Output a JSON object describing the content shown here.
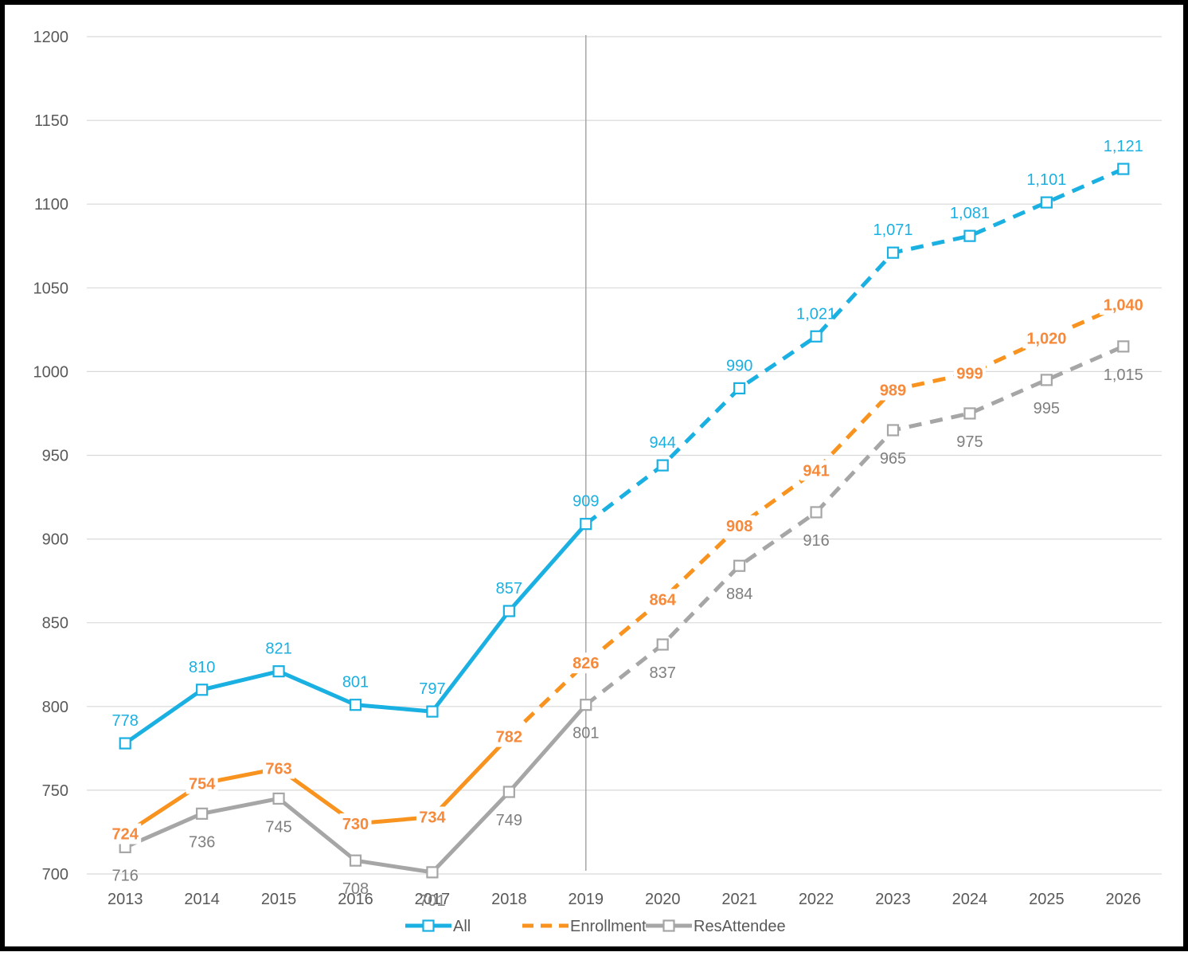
{
  "chart_data": {
    "type": "line",
    "title": "",
    "xlabel": "",
    "ylabel": "",
    "x": [
      "2013",
      "2014",
      "2015",
      "2016",
      "2017",
      "2018",
      "2019",
      "2020",
      "2021",
      "2022",
      "2023",
      "2024",
      "2025",
      "2026"
    ],
    "ylim": [
      700,
      1200
    ],
    "yticks": [
      "700",
      "750",
      "800",
      "850",
      "900",
      "950",
      "1000",
      "1050",
      "1100",
      "1150",
      "1200"
    ],
    "grid": true,
    "legend_position": "bottom",
    "forecast_from": "2019",
    "series": [
      {
        "name": "All",
        "color": "#1AB0E2",
        "marker": "hollow-square",
        "values": [
          778,
          810,
          821,
          801,
          797,
          857,
          909,
          944,
          990,
          1021,
          1071,
          1081,
          1101,
          1121
        ],
        "labels": [
          "778",
          "810",
          "821",
          "801",
          "797",
          "857",
          "909",
          "944",
          "990",
          "1,021",
          "1,071",
          "1,081",
          "1,101",
          "1,121"
        ]
      },
      {
        "name": "Enrollment",
        "color": "#F7931E",
        "label_color": "#F58A3C",
        "marker": "none",
        "values": [
          724,
          754,
          763,
          730,
          734,
          782,
          826,
          864,
          908,
          941,
          989,
          999,
          1020,
          1040
        ],
        "labels": [
          "724",
          "754",
          "763",
          "730",
          "734",
          "782",
          "826",
          "864",
          "908",
          "941",
          "989",
          "999",
          "1,020",
          "1,040"
        ]
      },
      {
        "name": "ResAttendee",
        "color": "#A6A6A6",
        "label_color": "#7F7F7F",
        "marker": "hollow-square",
        "values": [
          716,
          736,
          745,
          708,
          701,
          749,
          801,
          837,
          884,
          916,
          965,
          975,
          995,
          1015
        ],
        "labels": [
          "716",
          "736",
          "745",
          "708",
          "701",
          "749",
          "801",
          "837",
          "884",
          "916",
          "965",
          "975",
          "995",
          "1,015"
        ]
      }
    ]
  }
}
